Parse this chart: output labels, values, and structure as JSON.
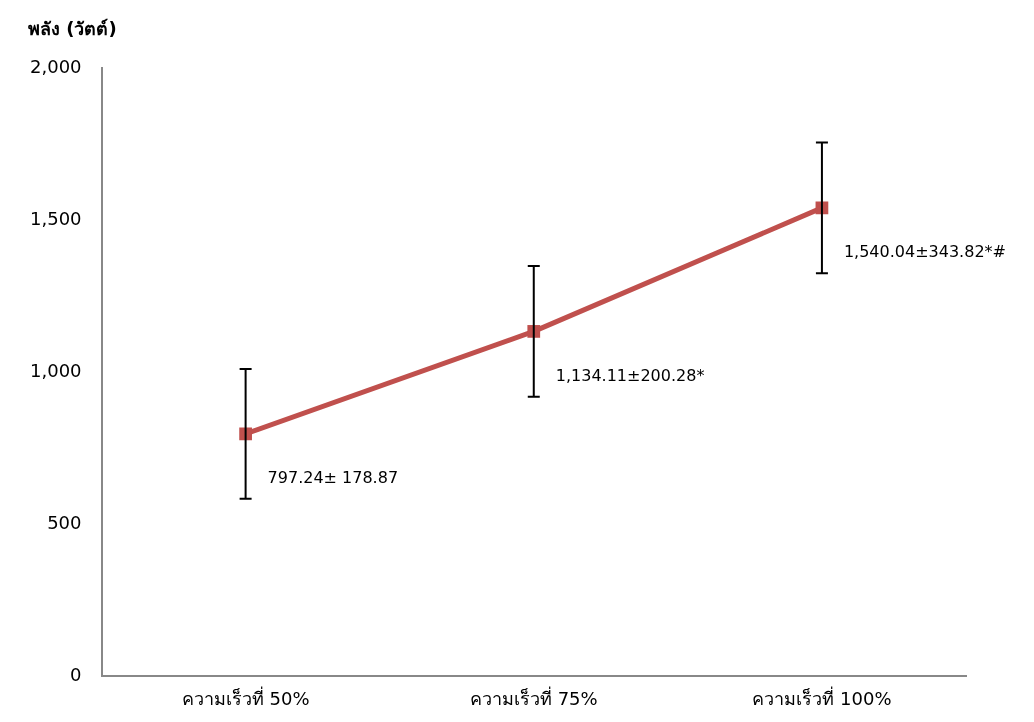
{
  "chart_data": {
    "type": "line",
    "ylabel": "พลัง (วัตต์)",
    "categories": [
      "ความเร็วที่ 50%",
      "ความเร็วที่ 75%",
      "ความเร็วที่ 100%"
    ],
    "series": [
      {
        "color": "#c0504d",
        "values": [
          797.24,
          1134.11,
          1540.04
        ],
        "errors": [
          213,
          215,
          215
        ],
        "value_labels": [
          "797.24± 178.87",
          "1,134.11±200.28*",
          "1,540.04±343.82*#"
        ]
      }
    ],
    "ylim": [
      0,
      2000
    ],
    "yticks": [
      {
        "value": 0,
        "label": "0"
      },
      {
        "value": 500,
        "label": "500"
      },
      {
        "value": 1000,
        "label": "1,000"
      },
      {
        "value": 1500,
        "label": "1,500"
      },
      {
        "value": 2000,
        "label": "2,000"
      }
    ],
    "grid": false,
    "legend": false,
    "marker": "square",
    "line_style": "solid"
  }
}
